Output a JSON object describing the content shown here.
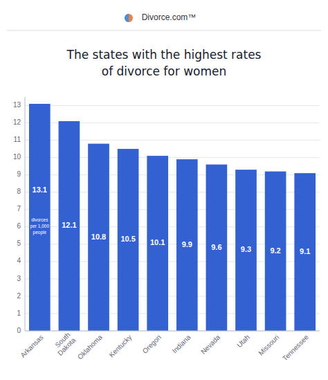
{
  "chart_data": {
    "type": "bar",
    "title": "The states with the highest rates\nof divorce for women",
    "categories": [
      "Arkansas",
      "South\nDakota",
      "Oklahoma",
      "Kentucky",
      "Oregon",
      "Indiana",
      "Nevada",
      "Utah",
      "Missouri",
      "Tennessee"
    ],
    "values": [
      13.1,
      12.1,
      10.8,
      10.5,
      10.1,
      9.9,
      9.6,
      9.3,
      9.2,
      9.1
    ],
    "color": "#3461D1",
    "ylim": [
      0,
      13.5
    ],
    "yticks": [
      0,
      1,
      2,
      3,
      4,
      5,
      6,
      7,
      8,
      9,
      10,
      11,
      12,
      13
    ],
    "grid": true,
    "data_labels": true,
    "annotations": [
      {
        "text": "Divorce.com™"
      },
      {
        "text": "divorces\nper 1,000\npeople",
        "category": "Arkansas"
      }
    ]
  }
}
